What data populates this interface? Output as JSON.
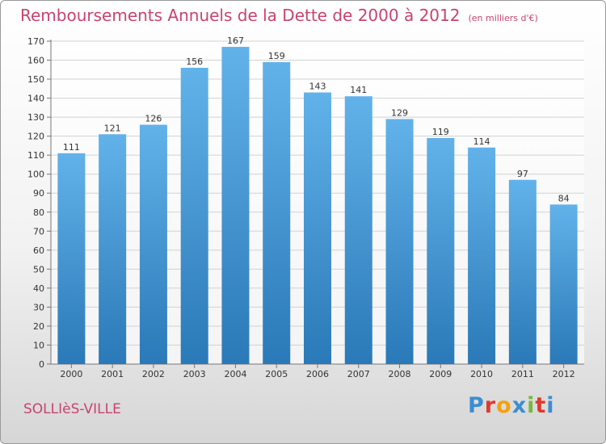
{
  "header": {
    "title": "Remboursements Annuels de la Dette de 2000 à 2012",
    "subtitle": "(en milliers d'€)"
  },
  "footer": {
    "city": "SOLLIèS-VILLE",
    "logo": [
      "P",
      "r",
      "o",
      "x",
      "i",
      "t",
      "i"
    ],
    "logo_colors": [
      "#3b8ed0",
      "#e0392b",
      "#f2a20f",
      "#3b8ed0",
      "#79b83b",
      "#e0392b",
      "#3b8ed0"
    ]
  },
  "colors": {
    "bar_top": "#62b2ea",
    "bar_bottom": "#2a79b8",
    "title": "#c8436f"
  },
  "chart_data": {
    "type": "bar",
    "title": "Remboursements Annuels de la Dette de 2000 à 2012",
    "subtitle": "(en milliers d'€)",
    "categories": [
      "2000",
      "2001",
      "2002",
      "2003",
      "2004",
      "2005",
      "2006",
      "2007",
      "2008",
      "2009",
      "2010",
      "2011",
      "2012"
    ],
    "values": [
      111,
      121,
      126,
      156,
      167,
      159,
      143,
      141,
      129,
      119,
      114,
      97,
      84
    ],
    "ylim": [
      0,
      170
    ],
    "yticks": [
      0,
      10,
      20,
      30,
      40,
      50,
      60,
      70,
      80,
      90,
      100,
      110,
      120,
      130,
      140,
      150,
      160,
      170
    ],
    "grid": true
  }
}
